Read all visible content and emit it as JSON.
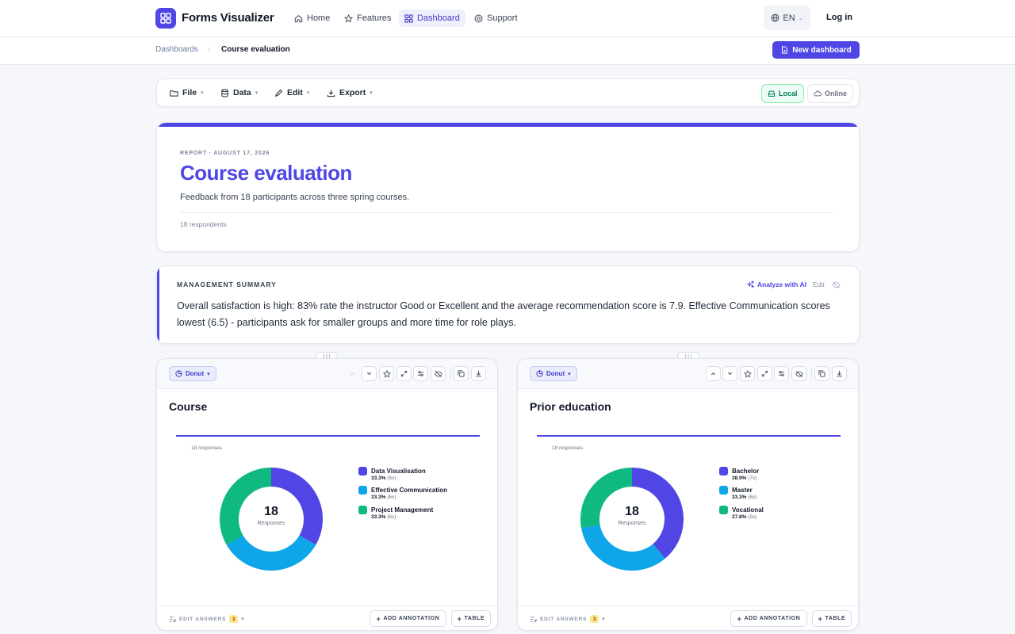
{
  "nav": {
    "brand": "Forms Visualizer",
    "items": [
      {
        "label": "Home",
        "icon": "home-icon"
      },
      {
        "label": "Features",
        "icon": "star-icon"
      },
      {
        "label": "Dashboard",
        "icon": "grid-icon",
        "active": true
      },
      {
        "label": "Support",
        "icon": "support-icon"
      }
    ],
    "language": "EN",
    "login": "Log in"
  },
  "breadcrumb": {
    "root": "Dashboards",
    "separator": "›",
    "current": "Course evaluation",
    "new_button": "New dashboard"
  },
  "toolbar": {
    "menus": [
      {
        "label": "File",
        "icon": "folder-icon"
      },
      {
        "label": "Data",
        "icon": "database-icon"
      },
      {
        "label": "Edit",
        "icon": "pencil-icon"
      },
      {
        "label": "Export",
        "icon": "download-icon"
      }
    ],
    "storage": {
      "local": "Local",
      "online": "Online",
      "selected": "Local"
    }
  },
  "report": {
    "kicker": "REPORT · AUGUST 17, 2026",
    "title": "Course evaluation",
    "subtitle": "Feedback from 18 participants across three spring courses.",
    "respondents": "18 respondents"
  },
  "summary": {
    "label": "MANAGEMENT SUMMARY",
    "analyze": "Analyze with AI",
    "edit": "Edit",
    "text": "Overall satisfaction is high: 83% rate the instructor Good or Excellent and the average recommendation score is 7.9. Effective Communication scores lowest (6.5) - participants ask for smaller groups and more time for role plays."
  },
  "widgets": [
    {
      "chart_type": "Donut",
      "title": "Course",
      "responses": "18 responses",
      "center_value": "18",
      "center_label": "Responses",
      "edit_answers": "EDIT ANSWERS",
      "edit_count": "3",
      "add_annotation": "ADD ANNOTATION",
      "table": "TABLE",
      "legend": [
        {
          "name": "Data Visualisation",
          "pct": "33.3%",
          "count": "(6x)",
          "color": "#4f46e5"
        },
        {
          "name": "Effective Communication",
          "pct": "33.3%",
          "count": "(6x)",
          "color": "#0ea5e9"
        },
        {
          "name": "Project Management",
          "pct": "33.3%",
          "count": "(6x)",
          "color": "#10b981"
        }
      ]
    },
    {
      "chart_type": "Donut",
      "title": "Prior education",
      "responses": "18 responses",
      "center_value": "18",
      "center_label": "Responses",
      "edit_answers": "EDIT ANSWERS",
      "edit_count": "3",
      "add_annotation": "ADD ANNOTATION",
      "table": "TABLE",
      "legend": [
        {
          "name": "Bachelor",
          "pct": "38.9%",
          "count": "(7x)",
          "color": "#4f46e5"
        },
        {
          "name": "Master",
          "pct": "33.3%",
          "count": "(6x)",
          "color": "#0ea5e9"
        },
        {
          "name": "Vocational",
          "pct": "27.8%",
          "count": "(5x)",
          "color": "#10b981"
        }
      ]
    }
  ],
  "chart_data": [
    {
      "type": "pie",
      "title": "Course",
      "categories": [
        "Data Visualisation",
        "Effective Communication",
        "Project Management"
      ],
      "values": [
        6,
        6,
        6
      ],
      "percent": [
        33.3,
        33.3,
        33.3
      ],
      "total": 18
    },
    {
      "type": "pie",
      "title": "Prior education",
      "categories": [
        "Bachelor",
        "Master",
        "Vocational"
      ],
      "values": [
        7,
        6,
        5
      ],
      "percent": [
        38.9,
        33.3,
        27.8
      ],
      "total": 18
    }
  ]
}
